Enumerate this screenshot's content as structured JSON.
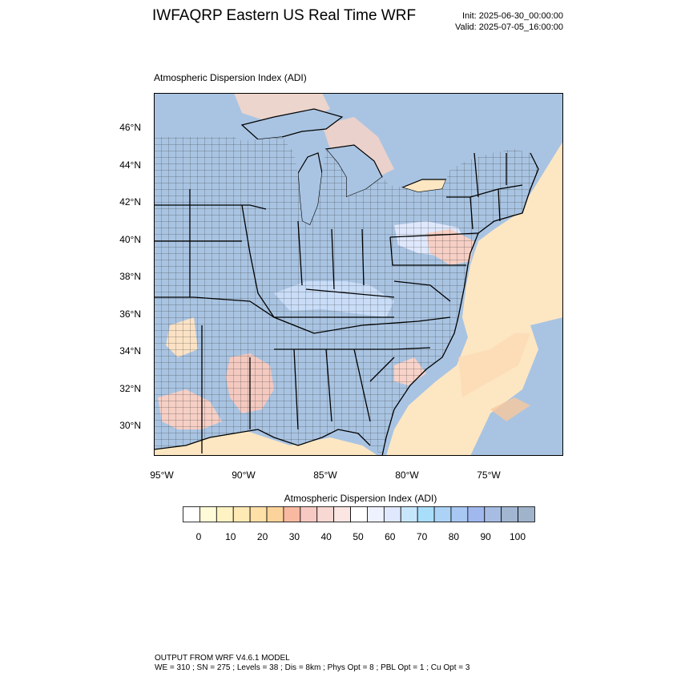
{
  "title": "IWFAQRP Eastern US Real Time WRF",
  "init_time": "Init: 2025-06-30_00:00:00",
  "valid_time": "Valid: 2025-07-05_16:00:00",
  "map_subtitle": "Atmospheric Dispersion Index   (ADI)",
  "map": {
    "lat_labels": [
      "46°N",
      "44°N",
      "42°N",
      "40°N",
      "38°N",
      "36°N",
      "34°N",
      "32°N",
      "30°N"
    ],
    "lon_labels": [
      "95°W",
      "90°W",
      "85°W",
      "80°W",
      "75°W"
    ],
    "colors": {
      "land_high_adi": "#a9c4e2",
      "water_high_adi": "#a9c4e2",
      "ocean_low_adi": "#fde7c2",
      "mid_adi": "#d7e6fb",
      "low_adi_red": "#f4c9c0",
      "boundary": "#000000"
    }
  },
  "colorbar": {
    "title": "Atmospheric Dispersion Index  (ADI)",
    "tick_labels": [
      "0",
      "10",
      "20",
      "30",
      "40",
      "50",
      "60",
      "70",
      "80",
      "90",
      "100"
    ],
    "colors": [
      "#ffffff",
      "#fffbd8",
      "#fff3c4",
      "#ffeab5",
      "#ffe0a6",
      "#fcd39a",
      "#f8b9a0",
      "#f6c9c2",
      "#f8d8d2",
      "#fbe6e3",
      "#ffffff",
      "#eef2ff",
      "#dfe8fd",
      "#c7e6fb",
      "#a9defb",
      "#acd3f6",
      "#a8c7f3",
      "#a1b8ee",
      "#a6bce2",
      "#a2b6d1",
      "#9fb3cb"
    ]
  },
  "footer": {
    "line1": "OUTPUT FROM WRF V4.6.1 MODEL",
    "line2": "WE = 310 ; SN = 275 ; Levels = 38 ; Dis = 8km ; Phys Opt = 8 ; PBL Opt = 1 ; Cu Opt = 3"
  }
}
